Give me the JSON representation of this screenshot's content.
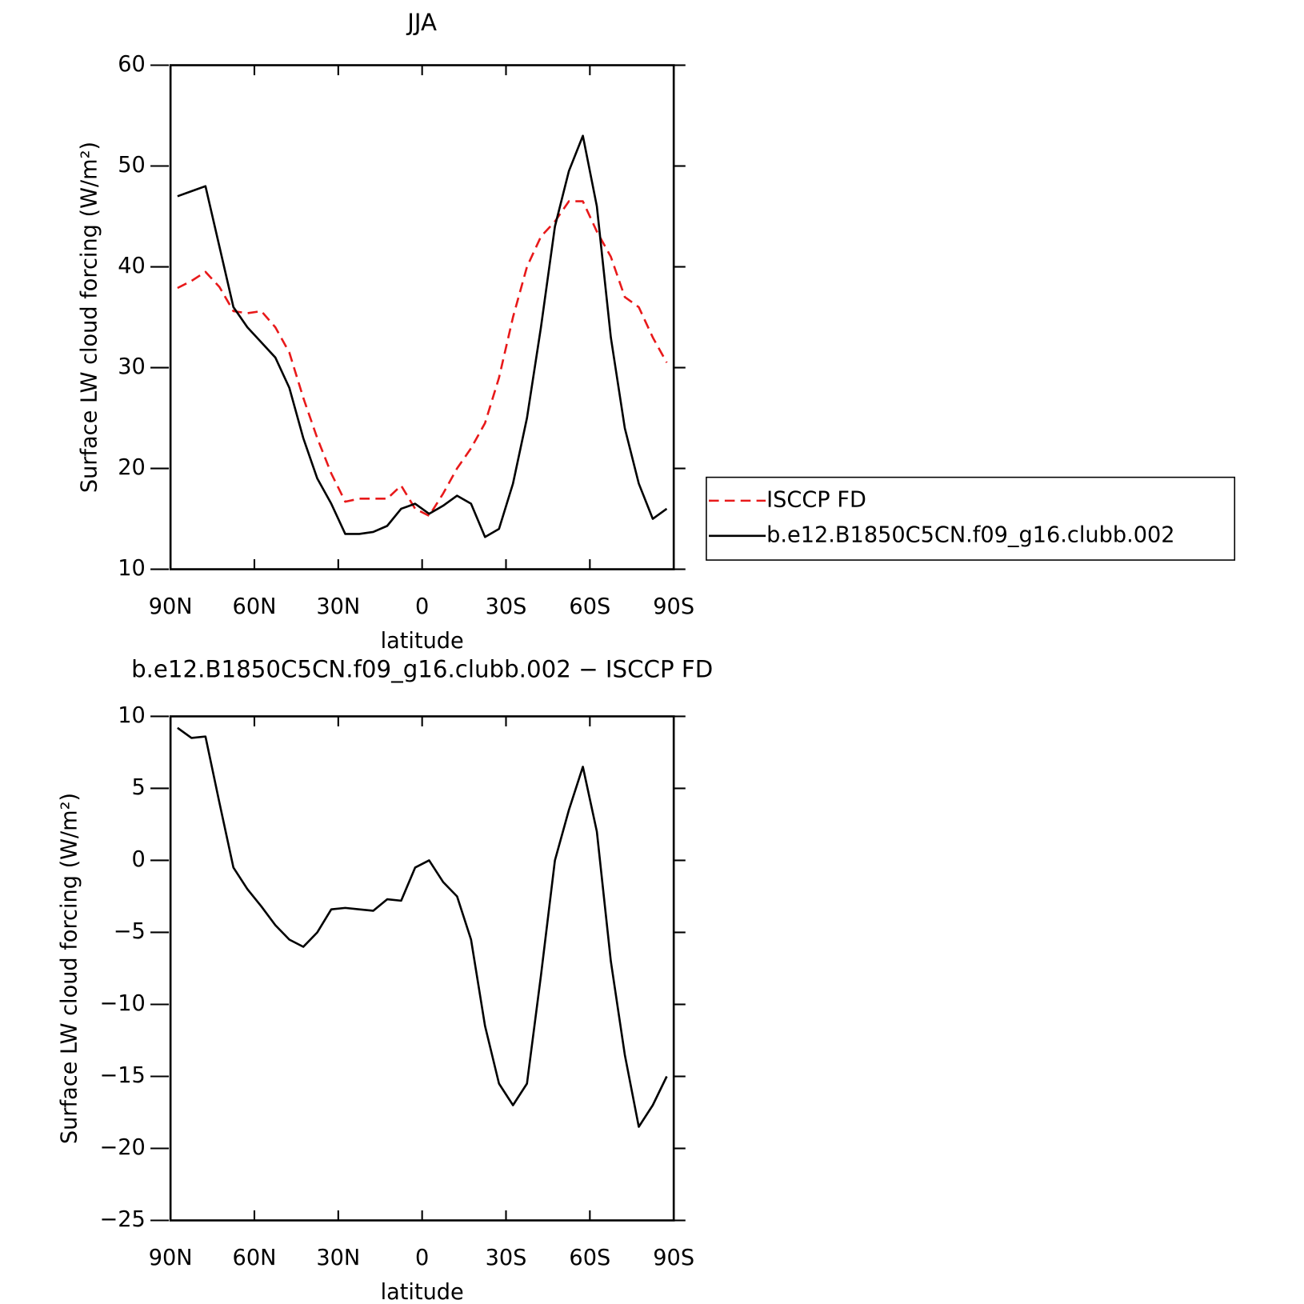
{
  "chart_data": [
    {
      "type": "line",
      "title": "JJA",
      "xlabel": "latitude",
      "ylabel": "Surface LW cloud forcing (W/m²)",
      "x": [
        87.5,
        82.5,
        77.5,
        72.5,
        67.5,
        62.5,
        57.5,
        52.5,
        47.5,
        42.5,
        37.5,
        32.5,
        27.5,
        22.5,
        17.5,
        12.5,
        7.5,
        2.5,
        -2.5,
        -7.5,
        -12.5,
        -17.5,
        -22.5,
        -27.5,
        -32.5,
        -37.5,
        -42.5,
        -47.5,
        -52.5,
        -57.5,
        -62.5,
        -67.5,
        -72.5,
        -77.5,
        -82.5,
        -87.5
      ],
      "series": [
        {
          "name": "ISCCP FD",
          "color": "#e8191a",
          "dash": true,
          "values": [
            37.9,
            38.6,
            39.5,
            38,
            35.6,
            35.4,
            35.6,
            34,
            31.5,
            27,
            23,
            19.5,
            16.7,
            17,
            17,
            17,
            18.3,
            16,
            15.3,
            17.5,
            20,
            22,
            24.5,
            29,
            35,
            40,
            43,
            44.5,
            46.5,
            46.5,
            43.5,
            41,
            37,
            36,
            33,
            30.5
          ]
        },
        {
          "name": "b.e12.B1850C5CN.f09_g16.clubb.002",
          "color": "#000000",
          "dash": false,
          "values": [
            47,
            47.5,
            48,
            42,
            36,
            34,
            32.5,
            31,
            28,
            23,
            19,
            16.5,
            13.5,
            13.5,
            13.7,
            14.3,
            16,
            16.5,
            15.5,
            16.3,
            17.3,
            16.5,
            13.2,
            14,
            18.5,
            25,
            34,
            44,
            49.5,
            53,
            46,
            33,
            24,
            18.5,
            15,
            16
          ]
        }
      ],
      "xlim": [
        90,
        -90
      ],
      "xticks": [
        {
          "value": 90,
          "label": "90N"
        },
        {
          "value": 60,
          "label": "60N"
        },
        {
          "value": 30,
          "label": "30N"
        },
        0,
        {
          "value": -30,
          "label": "30S"
        },
        {
          "value": -60,
          "label": "60S"
        },
        {
          "value": -90,
          "label": "90S"
        }
      ],
      "ylim": [
        10,
        60
      ],
      "yticks": [
        10,
        20,
        30,
        40,
        50,
        60
      ],
      "legend": "right"
    },
    {
      "type": "line",
      "title": "b.e12.B1850C5CN.f09_g16.clubb.002 − ISCCP FD",
      "xlabel": "latitude",
      "ylabel": "Surface LW cloud forcing (W/m²)",
      "x": [
        87.5,
        82.5,
        77.5,
        72.5,
        67.5,
        62.5,
        57.5,
        52.5,
        47.5,
        42.5,
        37.5,
        32.5,
        27.5,
        22.5,
        17.5,
        12.5,
        7.5,
        2.5,
        -2.5,
        -7.5,
        -12.5,
        -17.5,
        -22.5,
        -27.5,
        -32.5,
        -37.5,
        -42.5,
        -47.5,
        -52.5,
        -57.5,
        -62.5,
        -67.5,
        -72.5,
        -77.5,
        -82.5,
        -87.5
      ],
      "values": [
        9.2,
        8.5,
        8.6,
        4,
        -0.5,
        -2,
        -3.2,
        -4.5,
        -5.5,
        -6,
        -5,
        -3.4,
        -3.3,
        -3.4,
        -3.5,
        -2.7,
        -2.8,
        -0.5,
        0,
        -1.5,
        -2.5,
        -5.5,
        -11.5,
        -15.5,
        -17,
        -15.5,
        -8,
        0,
        3.5,
        6.5,
        2,
        -7,
        -13.5,
        -18.5,
        -17,
        -15
      ],
      "color": "#000000",
      "xlim": [
        90,
        -90
      ],
      "xticks": [
        {
          "value": 90,
          "label": "90N"
        },
        {
          "value": 60,
          "label": "60N"
        },
        {
          "value": 30,
          "label": "30N"
        },
        0,
        {
          "value": -30,
          "label": "30S"
        },
        {
          "value": -60,
          "label": "60S"
        },
        {
          "value": -90,
          "label": "90S"
        }
      ],
      "ylim": [
        -25,
        10
      ],
      "yticks": [
        {
          "value": -25,
          "label": "−25"
        },
        {
          "value": -20,
          "label": "−20"
        },
        {
          "value": -15,
          "label": "−15"
        },
        {
          "value": -10,
          "label": "−10"
        },
        {
          "value": -5,
          "label": "−5"
        },
        0,
        5,
        10
      ]
    }
  ]
}
